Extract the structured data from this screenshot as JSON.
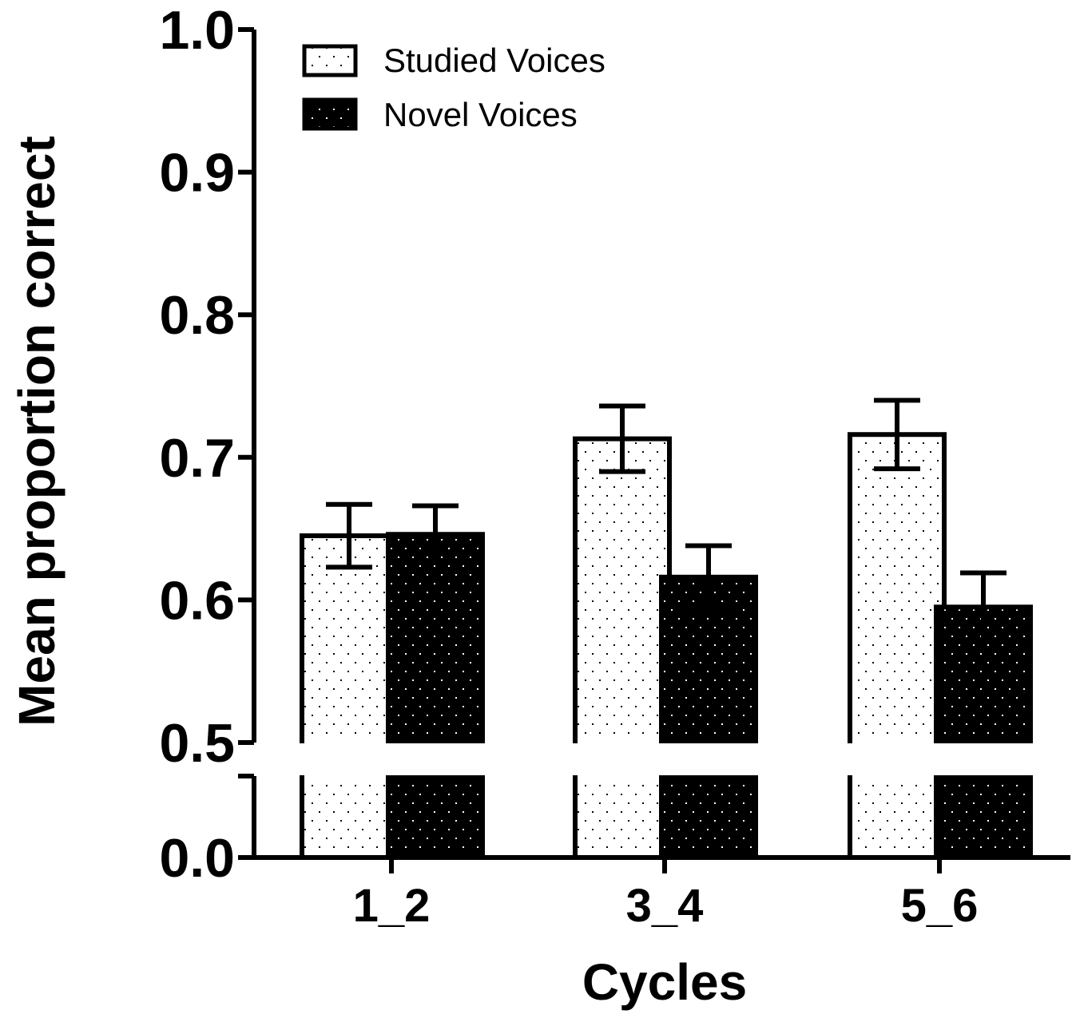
{
  "chart_data": {
    "type": "bar",
    "xlabel": "Cycles",
    "ylabel": "Mean proportion correct",
    "categories": [
      "1_2",
      "3_4",
      "5_6"
    ],
    "series": [
      {
        "name": "Studied Voices",
        "values": [
          0.645,
          0.713,
          0.716
        ],
        "errors": [
          0.022,
          0.023,
          0.024
        ]
      },
      {
        "name": "Novel Voices",
        "values": [
          0.646,
          0.616,
          0.595
        ],
        "errors": [
          0.02,
          0.022,
          0.024
        ]
      }
    ],
    "yticks": [
      "0.0",
      "0.5",
      "0.6",
      "0.7",
      "0.8",
      "0.9",
      "1.0"
    ],
    "ylim": [
      0,
      1.0
    ],
    "axis_break": [
      0,
      0.5
    ],
    "legend_position": "top-left",
    "grid": false,
    "colors": {
      "studied_fill": "#ffffff",
      "novel_fill": "#000000",
      "stroke": "#000000"
    }
  }
}
